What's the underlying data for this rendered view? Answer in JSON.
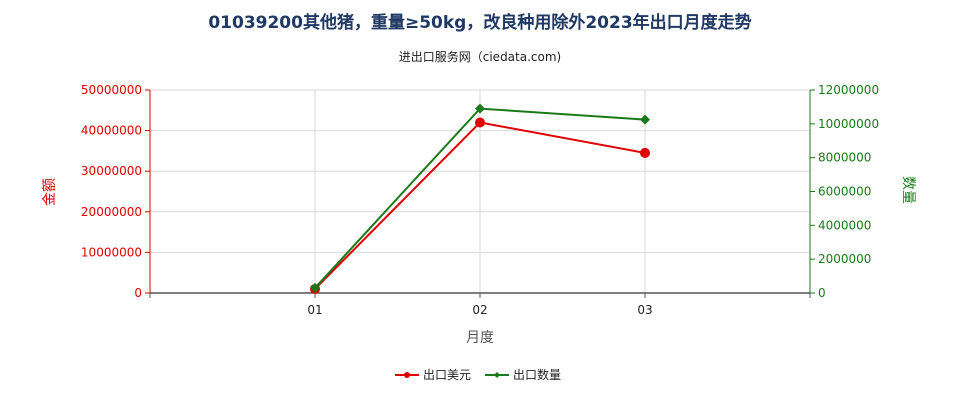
{
  "chart_data": {
    "type": "line",
    "title": "01039200其他猪，重量≥50kg，改良种用除外2023年出口月度走势",
    "subtitle": "进出口服务网（ciedata.com)",
    "xlabel": "月度",
    "ylabel_left": "金额",
    "ylabel_right": "数量",
    "categories": [
      "01",
      "02",
      "03"
    ],
    "ylim_left": [
      0,
      50000000
    ],
    "ylim_right": [
      0,
      12000000
    ],
    "yticks_left": [
      "0",
      "10000000",
      "20000000",
      "30000000",
      "40000000",
      "50000000"
    ],
    "yticks_right": [
      "0",
      "2000000",
      "4000000",
      "6000000",
      "8000000",
      "10000000",
      "12000000"
    ],
    "grid": true,
    "legend_position": "bottom",
    "series": [
      {
        "name": "出口美元",
        "axis": "left",
        "color": "#e00000",
        "marker": "circle",
        "values": [
          1000000,
          42000000,
          34500000
        ]
      },
      {
        "name": "出口数量",
        "axis": "right",
        "color": "#1a7a1a",
        "marker": "diamond",
        "values": [
          300000,
          10900000,
          10250000
        ]
      }
    ]
  }
}
